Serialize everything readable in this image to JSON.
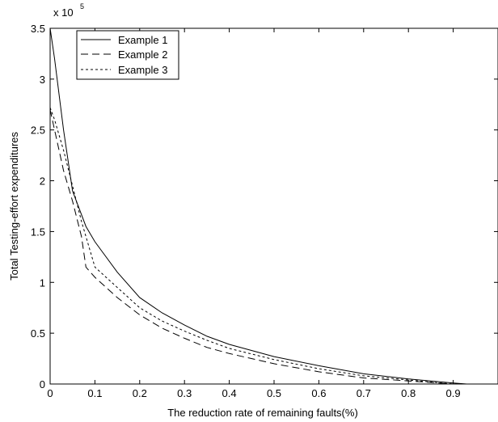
{
  "chart_data": {
    "type": "line",
    "title": "",
    "xlabel": "The reduction rate of remaining faults(%)",
    "ylabel": "Total Testing-effort expenditures",
    "y_multiplier": {
      "base": "x 10",
      "exponent": "5"
    },
    "xlim": [
      0,
      1
    ],
    "ylim": [
      0,
      3.5
    ],
    "xticks": [
      "0",
      "0.1",
      "0.2",
      "0.3",
      "0.4",
      "0.5",
      "0.6",
      "0.7",
      "0.8",
      "0.9"
    ],
    "yticks": [
      "0",
      "0.5",
      "1",
      "1.5",
      "2",
      "2.5",
      "3",
      "3.5"
    ],
    "grid": false,
    "legend_position": "top-left",
    "series": [
      {
        "name": "Example 1",
        "style": "solid",
        "x": [
          0.0,
          0.01,
          0.03,
          0.05,
          0.08,
          0.1,
          0.15,
          0.2,
          0.25,
          0.3,
          0.35,
          0.4,
          0.5,
          0.6,
          0.7,
          0.8,
          0.9,
          0.93
        ],
        "y": [
          3.5,
          3.2,
          2.5,
          1.9,
          1.55,
          1.4,
          1.1,
          0.85,
          0.7,
          0.58,
          0.47,
          0.39,
          0.27,
          0.18,
          0.1,
          0.05,
          0.01,
          0.0
        ]
      },
      {
        "name": "Example 2",
        "style": "dash",
        "x": [
          0.0,
          0.01,
          0.03,
          0.05,
          0.07,
          0.08,
          0.1,
          0.15,
          0.2,
          0.25,
          0.3,
          0.35,
          0.4,
          0.5,
          0.6,
          0.7,
          0.8,
          0.9
        ],
        "y": [
          2.7,
          2.5,
          2.1,
          1.8,
          1.45,
          1.15,
          1.05,
          0.85,
          0.68,
          0.55,
          0.45,
          0.36,
          0.3,
          0.2,
          0.12,
          0.06,
          0.03,
          0.0
        ]
      },
      {
        "name": "Example 3",
        "style": "dot",
        "x": [
          0.0,
          0.01,
          0.03,
          0.05,
          0.07,
          0.1,
          0.15,
          0.2,
          0.25,
          0.3,
          0.35,
          0.4,
          0.5,
          0.6,
          0.7,
          0.8,
          0.9
        ],
        "y": [
          2.72,
          2.6,
          2.3,
          1.95,
          1.6,
          1.15,
          0.95,
          0.75,
          0.62,
          0.52,
          0.43,
          0.35,
          0.24,
          0.15,
          0.08,
          0.04,
          0.0
        ]
      }
    ]
  }
}
